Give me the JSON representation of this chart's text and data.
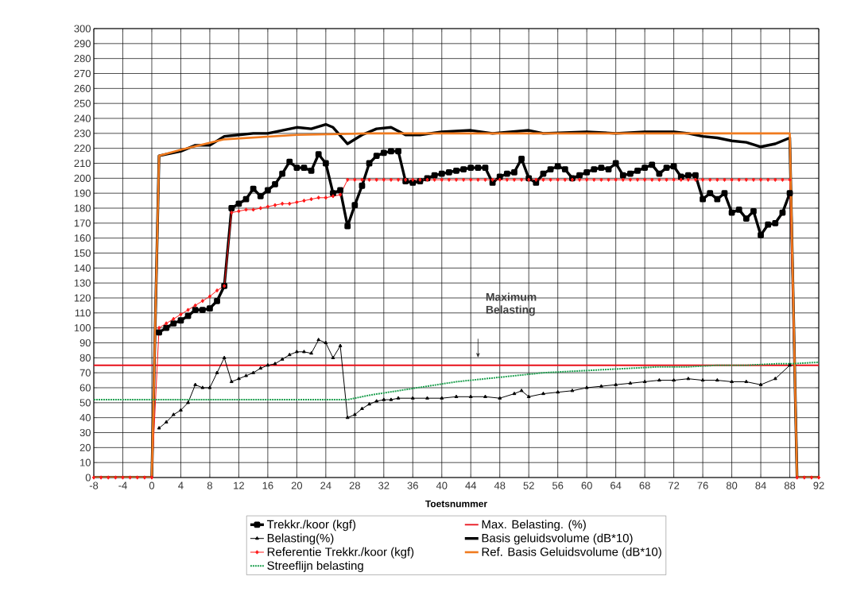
{
  "chart_data": {
    "type": "line",
    "xlabel": "Toetsnummer",
    "xlim": [
      -8,
      92
    ],
    "ylim": [
      0,
      300
    ],
    "xticks": [
      -8,
      -4,
      0,
      4,
      8,
      12,
      16,
      20,
      24,
      28,
      32,
      36,
      40,
      44,
      48,
      52,
      56,
      60,
      64,
      68,
      72,
      76,
      80,
      84,
      88,
      92
    ],
    "yticks": [
      0,
      10,
      20,
      30,
      40,
      50,
      60,
      70,
      80,
      90,
      100,
      110,
      120,
      130,
      140,
      150,
      160,
      170,
      180,
      190,
      200,
      210,
      220,
      230,
      240,
      250,
      260,
      270,
      280,
      290,
      300
    ],
    "grid": true,
    "legend": "bottom",
    "annotations": [
      "Maximum Belasting"
    ],
    "series": [
      {
        "name": "Trekkr./koor (kgf)",
        "color": "#000000",
        "marker": "square",
        "x": [
          1,
          2,
          3,
          4,
          5,
          6,
          7,
          8,
          9,
          10,
          11,
          12,
          13,
          14,
          15,
          16,
          17,
          18,
          19,
          20,
          21,
          22,
          23,
          24,
          25,
          26,
          27,
          28,
          29,
          30,
          31,
          32,
          33,
          34,
          35,
          36,
          37,
          38,
          39,
          40,
          41,
          42,
          43,
          44,
          45,
          46,
          47,
          48,
          49,
          50,
          51,
          52,
          53,
          54,
          55,
          56,
          57,
          58,
          59,
          60,
          61,
          62,
          63,
          64,
          65,
          66,
          67,
          68,
          69,
          70,
          71,
          72,
          73,
          74,
          75,
          76,
          77,
          78,
          79,
          80,
          81,
          82,
          83,
          84,
          85,
          86,
          87,
          88
        ],
        "values": [
          97,
          100,
          103,
          105,
          108,
          112,
          112,
          113,
          118,
          128,
          180,
          183,
          186,
          193,
          188,
          192,
          196,
          203,
          211,
          207,
          207,
          205,
          216,
          210,
          190,
          192,
          168,
          182,
          195,
          210,
          215,
          217,
          218,
          218,
          198,
          197,
          198,
          200,
          202,
          203,
          204,
          205,
          206,
          207,
          207,
          207,
          197,
          201,
          203,
          204,
          213,
          200,
          197,
          203,
          206,
          208,
          206,
          200,
          202,
          204,
          206,
          207,
          206,
          210,
          202,
          203,
          205,
          207,
          209,
          203,
          207,
          208,
          201,
          202,
          202,
          186,
          190,
          186,
          190,
          177,
          179,
          173,
          178,
          162,
          169,
          170,
          177,
          190
        ]
      },
      {
        "name": "Max. Belasting. (%)",
        "color": "#e8101a",
        "marker": "none",
        "x": [
          -8,
          92
        ],
        "values": [
          75,
          75
        ]
      },
      {
        "name": "Belasting(%)",
        "color": "#000000",
        "marker": "triangle",
        "x": [
          1,
          2,
          3,
          4,
          5,
          6,
          7,
          8,
          9,
          10,
          11,
          12,
          13,
          14,
          15,
          16,
          17,
          18,
          19,
          20,
          21,
          22,
          23,
          24,
          25,
          26,
          27,
          28,
          29,
          30,
          31,
          32,
          33,
          34,
          36,
          38,
          40,
          42,
          44,
          46,
          48,
          50,
          51,
          52,
          54,
          56,
          58,
          60,
          62,
          64,
          66,
          68,
          70,
          72,
          74,
          76,
          78,
          80,
          82,
          84,
          86,
          88
        ],
        "values": [
          33,
          37,
          42,
          45,
          50,
          62,
          60,
          60,
          70,
          80,
          64,
          66,
          68,
          70,
          73,
          75,
          76,
          79,
          82,
          84,
          84,
          83,
          92,
          90,
          80,
          88,
          40,
          42,
          46,
          49,
          51,
          52,
          52,
          53,
          53,
          53,
          53,
          54,
          54,
          54,
          53,
          56,
          58,
          54,
          56,
          57,
          58,
          60,
          61,
          62,
          63,
          64,
          65,
          65,
          66,
          65,
          65,
          64,
          64,
          62,
          66,
          75
        ]
      },
      {
        "name": "Basis geluidsvolume (dB*10)",
        "color": "#000000",
        "marker": "none",
        "x": [
          -8,
          0,
          1,
          2,
          4,
          6,
          8,
          10,
          12,
          14,
          16,
          18,
          20,
          22,
          24,
          25,
          27,
          29,
          31,
          33,
          35,
          37,
          40,
          44,
          47,
          52,
          54,
          60,
          64,
          68,
          72,
          74,
          76,
          78,
          80,
          82,
          84,
          86,
          88,
          89,
          92
        ],
        "values": [
          0,
          0,
          215,
          216,
          218,
          222,
          222,
          228,
          229,
          230,
          230,
          232,
          234,
          233,
          236,
          234,
          223,
          229,
          233,
          234,
          229,
          229,
          231,
          232,
          230,
          232,
          230,
          231,
          230,
          231,
          231,
          230,
          228,
          227,
          225,
          224,
          221,
          223,
          227,
          0,
          0
        ]
      },
      {
        "name": "Referentie Trekkr./koor (kgf)",
        "color": "#ff1a1a",
        "marker": "diamond",
        "x": [
          -8,
          -7,
          -6,
          -5,
          -4,
          -3,
          -2,
          -1,
          0,
          1,
          2,
          3,
          4,
          5,
          6,
          7,
          8,
          9,
          10,
          11,
          12,
          13,
          14,
          15,
          16,
          17,
          18,
          19,
          20,
          21,
          22,
          23,
          24,
          25,
          26,
          27,
          28,
          29,
          30,
          31,
          32,
          33,
          34,
          35,
          36,
          37,
          38,
          39,
          40,
          41,
          42,
          43,
          44,
          45,
          46,
          47,
          48,
          49,
          50,
          51,
          52,
          53,
          54,
          55,
          56,
          57,
          58,
          59,
          60,
          61,
          62,
          63,
          64,
          65,
          66,
          67,
          68,
          69,
          70,
          71,
          72,
          73,
          74,
          75,
          76,
          77,
          78,
          79,
          80,
          81,
          82,
          83,
          84,
          85,
          86,
          87,
          88,
          89,
          90,
          91,
          92
        ],
        "values": [
          0,
          0,
          0,
          0,
          0,
          0,
          0,
          0,
          0,
          100,
          103,
          106,
          109,
          112,
          115,
          118,
          121,
          125,
          128,
          177,
          178,
          179,
          179,
          180,
          181,
          182,
          183,
          183,
          184,
          185,
          186,
          187,
          187,
          188,
          189,
          199,
          199,
          199,
          199,
          199,
          199,
          199,
          199,
          199,
          199,
          199,
          199,
          199,
          199,
          199,
          199,
          199,
          199,
          199,
          199,
          199,
          199,
          199,
          199,
          199,
          199,
          199,
          199,
          199,
          199,
          199,
          199,
          199,
          199,
          199,
          199,
          199,
          199,
          199,
          199,
          199,
          199,
          199,
          199,
          199,
          199,
          199,
          199,
          199,
          199,
          199,
          199,
          199,
          199,
          199,
          199,
          199,
          199,
          199,
          199,
          199,
          199,
          0,
          0,
          0,
          0
        ]
      },
      {
        "name": "Ref. Basis Geluidsvolume (dB*10)",
        "color": "#f07a1e",
        "marker": "none",
        "x": [
          -8,
          0,
          1,
          4,
          10,
          20,
          30,
          88,
          89,
          92
        ],
        "values": [
          0,
          0,
          215,
          219,
          226,
          229,
          230,
          230,
          0,
          0
        ]
      },
      {
        "name": "Streeflijn belasting",
        "color": "#1fa050",
        "marker": "none",
        "line_style": "dotted",
        "x": [
          -8,
          -4,
          0,
          4,
          8,
          12,
          16,
          20,
          24,
          27,
          30,
          34,
          38,
          42,
          46,
          50,
          54,
          58,
          62,
          66,
          70,
          74,
          78,
          82,
          86,
          88,
          92
        ],
        "values": [
          52,
          52,
          52,
          52,
          52,
          52,
          52,
          52,
          52,
          52,
          55,
          58,
          61,
          64,
          66,
          68,
          70,
          71,
          72,
          73,
          74,
          74,
          75,
          75,
          76,
          76,
          77
        ]
      }
    ]
  }
}
